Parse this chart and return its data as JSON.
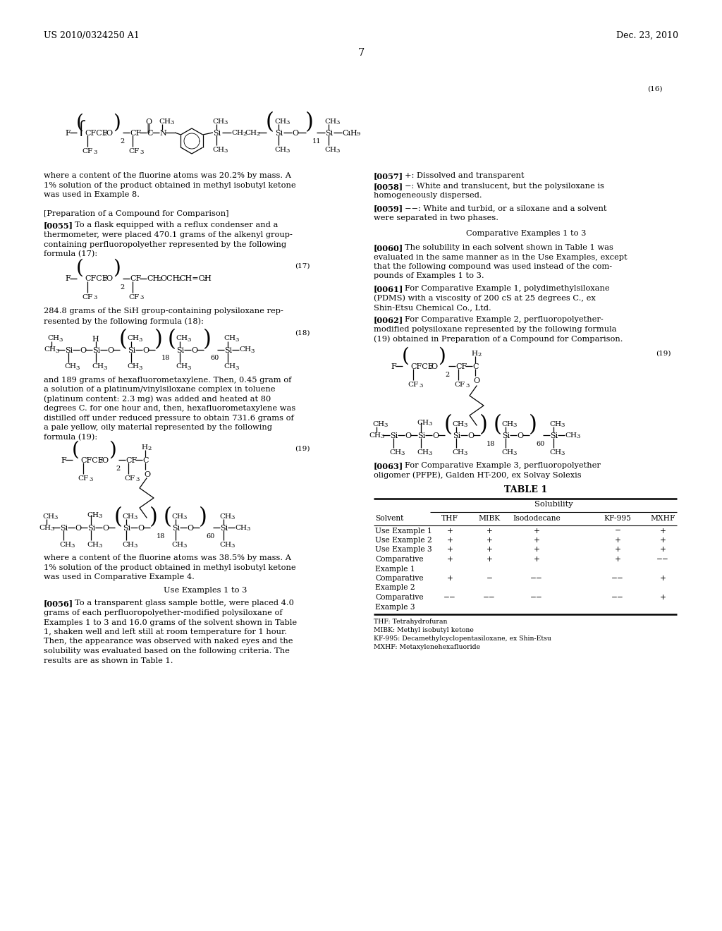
{
  "header_left": "US 2010/0324250 A1",
  "header_right": "Dec. 23, 2010",
  "page_number": "7",
  "background_color": "#ffffff",
  "text_color": "#000000",
  "font_size_body": 8.2,
  "font_size_header": 9.0,
  "font_size_page": 10.5
}
